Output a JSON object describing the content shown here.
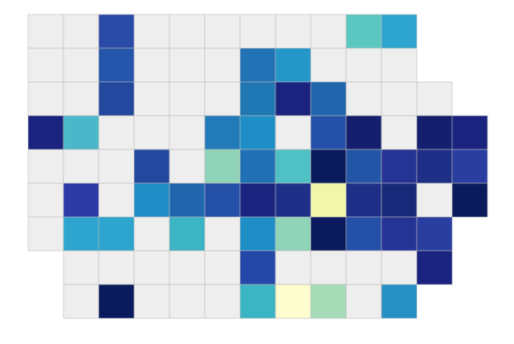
{
  "map": {
    "rows": [
      [
        "#eeeeee",
        "#eeeeee",
        "#2a4aa8",
        "#eeeeee",
        "#eeeeee",
        "#eeeeee",
        "#eeeeee",
        "#eeeeee",
        "#eeeeee",
        "#5cc6c0",
        "#2ea5cf",
        null,
        null
      ],
      [
        "#eeeeee",
        "#eeeeee",
        "#2656ac",
        "#eeeeee",
        "#eeeeee",
        "#eeeeee",
        "#2272b6",
        "#2596c8",
        "#eeeeee",
        "#eeeeee",
        "#eeeeee",
        null,
        null
      ],
      [
        "#eeeeee",
        "#eeeeee",
        "#24489e",
        "#eeeeee",
        "#eeeeee",
        "#eeeeee",
        "#1f78b4",
        "#1a237e",
        "#2166ac",
        "#eeeeee",
        "#eeeeee",
        "#eeeeee",
        null
      ],
      [
        "#1a237e",
        "#4ab8c8",
        "#eeeeee",
        "#eeeeee",
        "#eeeeee",
        "#227ab8",
        "#1f8ec6",
        "#eeeeee",
        "#2450a8",
        "#14206e",
        "#eeeeee",
        "#14206e",
        "#1a237e"
      ],
      [
        "#eeeeee",
        "#eeeeee",
        "#eeeeee",
        "#2448a0",
        "#eeeeee",
        "#8fd4b8",
        "#1f70b4",
        "#4fc0c4",
        "#0a1a5c",
        "#2456a8",
        "#253494",
        "#1e2f88",
        "#2a3ea0"
      ],
      [
        "#eeeeee",
        "#2c3aa6",
        "#eeeeee",
        "#1f8ec6",
        "#2166ac",
        "#2450a8",
        "#1a237e",
        "#1e2f88",
        "#f0f7a8",
        "#1e2f88",
        "#172a7a",
        "#eeeeee",
        "#0a1a5c"
      ],
      [
        "#eeeeee",
        "#2ea5cf",
        "#2ea5cf",
        "#eeeeee",
        "#3bb4c4",
        "#eeeeee",
        "#1f8ec6",
        "#8fd4b8",
        "#0a1a5c",
        "#2450a8",
        "#253494",
        "#2a3ea0",
        null
      ],
      [
        null,
        "#eeeeee",
        "#eeeeee",
        "#eeeeee",
        "#eeeeee",
        "#eeeeee",
        "#2448a8",
        "#eeeeee",
        "#eeeeee",
        "#eeeeee",
        "#eeeeee",
        "#1a237e",
        null
      ],
      [
        null,
        "#eeeeee",
        "#0a1a5c",
        "#eeeeee",
        "#eeeeee",
        "#eeeeee",
        "#3bb4c4",
        "#fdfdd0",
        "#a6dcb8",
        "#eeeeee",
        "#2590c4",
        null,
        null
      ]
    ]
  }
}
